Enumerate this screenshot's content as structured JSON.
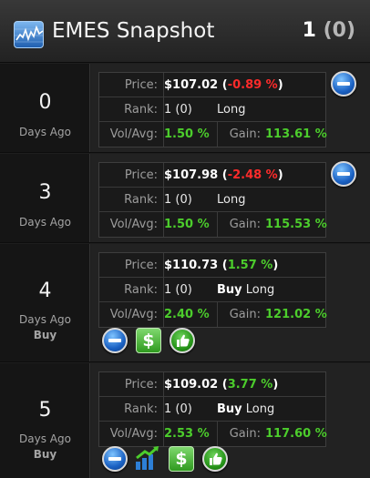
{
  "header": {
    "title": "EMES Snapshot",
    "count": "1",
    "count_paren_open": " (",
    "count_paren_value": "0",
    "count_paren_close": ")"
  },
  "labels": {
    "price": "Price:",
    "rank": "Rank:",
    "vol_avg": "Vol/Avg:",
    "gain": "Gain:",
    "days_ago": "Days Ago"
  },
  "rows": [
    {
      "day": "0",
      "buy_label": "",
      "price": "$107.02",
      "change_open": " (",
      "change": "-0.89 %",
      "change_close": ")",
      "rank": "1 (0)",
      "signal_prefix": "",
      "signal": "Long",
      "vol_avg": "1.50 %",
      "gain": "113.61 %"
    },
    {
      "day": "3",
      "buy_label": "",
      "price": "$107.98",
      "change_open": " (",
      "change": "-2.48 %",
      "change_close": ")",
      "rank": "1 (0)",
      "signal_prefix": "",
      "signal": "Long",
      "vol_avg": "1.50 %",
      "gain": "115.53 %"
    },
    {
      "day": "4",
      "buy_label": "Buy",
      "price": "$110.73",
      "change_open": " (",
      "change": "1.57 %",
      "change_close": ")",
      "rank": "1 (0)",
      "signal_prefix": "Buy",
      "signal": " Long",
      "vol_avg": "2.40 %",
      "gain": "121.02 %"
    },
    {
      "day": "5",
      "buy_label": "Buy",
      "price": "$109.02",
      "change_open": " (",
      "change": "3.77 %",
      "change_close": ")",
      "rank": "1 (0)",
      "signal_prefix": "Buy",
      "signal": " Long",
      "vol_avg": "2.53 %",
      "gain": "117.60 %"
    }
  ],
  "icons": {
    "app": "stock-chart-icon",
    "remove": "minus-circle-icon",
    "dollar": "dollar-icon",
    "thumbs_up": "thumbs-up-icon",
    "chart": "trend-chart-icon",
    "dollar_glyph": "$"
  },
  "colors": {
    "negative": "#ff2b2b",
    "positive": "#4ccd2c",
    "accent_blue": "#1b62c4"
  }
}
